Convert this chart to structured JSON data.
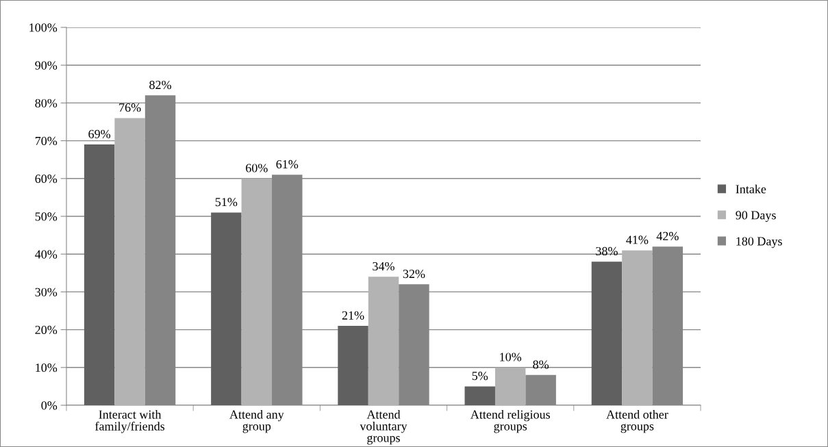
{
  "chart_data": {
    "type": "bar",
    "categories": [
      "Interact with\nfamily/friends",
      "Attend any\ngroup",
      "Attend\nvoluntary\ngroups",
      "Attend religious\ngroups",
      "Attend other\ngroups"
    ],
    "series": [
      {
        "name": "Intake",
        "color": "#606060",
        "values": [
          69,
          51,
          21,
          5,
          38
        ],
        "value_labels": [
          "69%",
          "51%",
          "21%",
          "5%",
          "38%"
        ]
      },
      {
        "name": "90 Days",
        "color": "#b3b3b3",
        "values": [
          76,
          60,
          34,
          10,
          41
        ],
        "value_labels": [
          "76%",
          "60%",
          "34%",
          "10%",
          "41%"
        ]
      },
      {
        "name": "180 Days",
        "color": "#858585",
        "values": [
          82,
          61,
          32,
          8,
          42
        ],
        "value_labels": [
          "82%",
          "61%",
          "32%",
          "8%",
          "42%"
        ]
      }
    ],
    "ylim": [
      0,
      100
    ],
    "yticks": [
      {
        "value": 0,
        "label": "0%"
      },
      {
        "value": 10,
        "label": "10%"
      },
      {
        "value": 20,
        "label": "20%"
      },
      {
        "value": 30,
        "label": "30%"
      },
      {
        "value": 40,
        "label": "40%"
      },
      {
        "value": 50,
        "label": "50%"
      },
      {
        "value": 60,
        "label": "60%"
      },
      {
        "value": 70,
        "label": "70%"
      },
      {
        "value": 80,
        "label": "80%"
      },
      {
        "value": 90,
        "label": "90%"
      },
      {
        "value": 100,
        "label": "100%"
      }
    ],
    "grid": "y",
    "legend": "right"
  }
}
